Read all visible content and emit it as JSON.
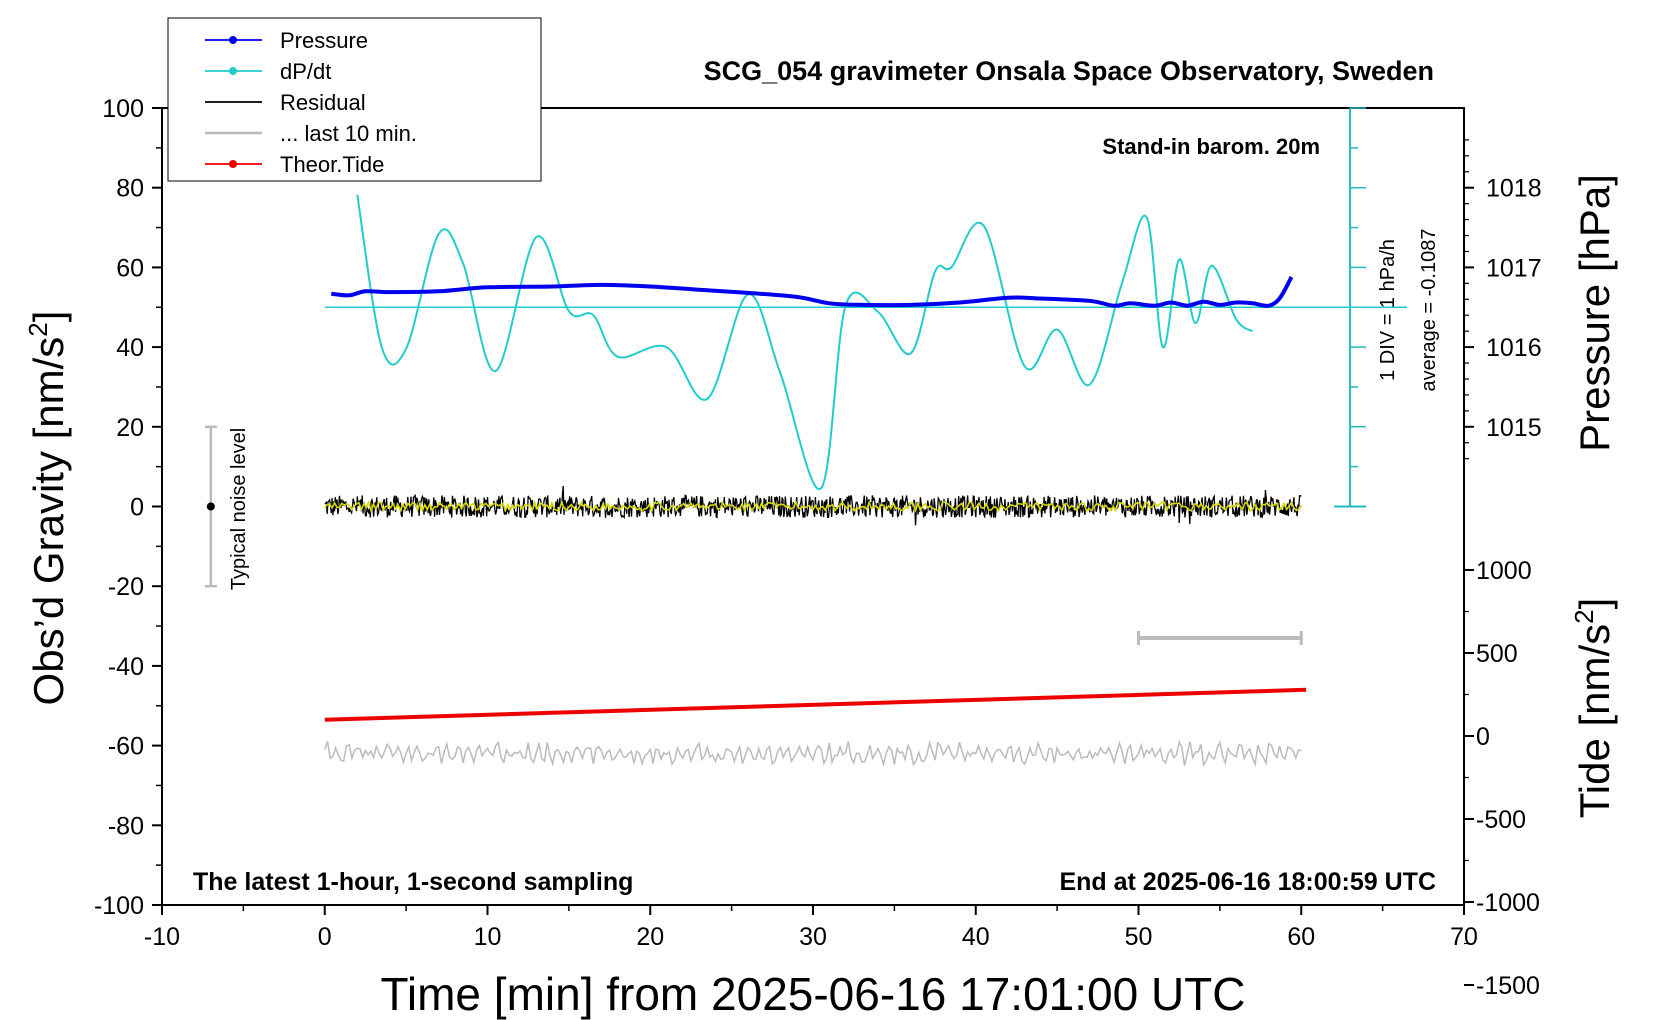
{
  "chart_data": {
    "type": "line",
    "title": "SCG_054 gravimeter Onsala Space Observatory, Sweden",
    "xlabel": "Time [min] from 2025-06-16 17:01:00 UTC",
    "ylabel_left": "Obs’d Gravity [nm/s",
    "ylabel_left_sup": "2",
    "ylabel_left_end": "]",
    "ylabel_right_top": "Pressure [hPa]",
    "ylabel_right_bottom": "Tide [nm/s",
    "ylabel_right_bottom_sup": "2",
    "ylabel_right_bottom_end": "]",
    "xlim": [
      -10,
      70
    ],
    "ylim": [
      -100,
      100
    ],
    "x_ticks": [
      "-10",
      "0",
      "10",
      "20",
      "30",
      "40",
      "50",
      "60",
      "70"
    ],
    "y_ticks": [
      "100",
      "80",
      "60",
      "40",
      "20",
      "0",
      "-20",
      "-40",
      "-60",
      "-80",
      "-100"
    ],
    "pressure_axis": {
      "ticks": [
        "1018",
        "1017",
        "1016",
        "1015"
      ],
      "values": [
        1018,
        1017,
        1016,
        1015
      ],
      "range": [
        1014.0,
        1019.0
      ]
    },
    "tide_axis": {
      "ticks": [
        "1000",
        "500",
        "0",
        "-500",
        "-1000",
        "-1500"
      ],
      "values": [
        1000,
        500,
        0,
        -500,
        -1000,
        -1500
      ],
      "range": [
        -1500,
        1500
      ]
    },
    "annotations": {
      "barometer": "Stand-in barom. 20m",
      "sampling": "The latest 1-hour, 1-second sampling",
      "end_time": "End at 2025-06-16 18:00:59 UTC",
      "div_scale": "1 DIV = 1 hPa/h",
      "average": "average = -0.1087",
      "noise": "Typical noise level"
    },
    "legend": [
      {
        "name": "Pressure",
        "color": "#0000ee",
        "marker": true
      },
      {
        "name": "dP/dt",
        "color": "#22cccc",
        "marker": true
      },
      {
        "name": "Residual",
        "color": "#000000",
        "marker": false
      },
      {
        "name": "... last 10 min.",
        "color": "#bbbbbb",
        "marker": false
      },
      {
        "name": "Theor.Tide",
        "color": "#ee0000",
        "marker": true
      }
    ],
    "series": [
      {
        "name": "Pressure",
        "unit": "hPa",
        "color": "#0000ee",
        "x": [
          0.4,
          1.5,
          2.5,
          4,
          7,
          10,
          14,
          17,
          20,
          23,
          26,
          29,
          31,
          33,
          36,
          39,
          42,
          44,
          47,
          48.5,
          49.5,
          51,
          52,
          53,
          54,
          55,
          56,
          57,
          58,
          58.7,
          59.4
        ],
        "y": [
          1016.67,
          1016.65,
          1016.7,
          1016.69,
          1016.7,
          1016.75,
          1016.76,
          1016.78,
          1016.76,
          1016.72,
          1016.68,
          1016.63,
          1016.55,
          1016.53,
          1016.53,
          1016.56,
          1016.62,
          1016.61,
          1016.58,
          1016.52,
          1016.55,
          1016.52,
          1016.56,
          1016.52,
          1016.57,
          1016.53,
          1016.56,
          1016.55,
          1016.52,
          1016.62,
          1016.88
        ]
      },
      {
        "name": "dP/dt",
        "unit": "DIV (1 DIV = 1 hPa/h), baseline at y = 50",
        "color": "#22cccc",
        "x": [
          2,
          3.5,
          5,
          7,
          8.5,
          10.5,
          13,
          15,
          16.5,
          18,
          21,
          23.5,
          26,
          28,
          30.5,
          32,
          34,
          36,
          37.5,
          38.5,
          40.5,
          43,
          45,
          47,
          49,
          50.5,
          51.5,
          52.5,
          53.5,
          54.5,
          56,
          57
        ],
        "y": [
          1.41,
          -0.5,
          -0.52,
          0.92,
          0.55,
          -0.8,
          0.88,
          -0.05,
          -0.1,
          -0.62,
          -0.5,
          -1.15,
          0.16,
          -0.83,
          -2.27,
          0.02,
          -0.06,
          -0.58,
          0.45,
          0.5,
          1.02,
          -0.74,
          -0.28,
          -0.97,
          0.31,
          1.13,
          -0.5,
          0.6,
          -0.2,
          0.52,
          -0.15,
          -0.3
        ]
      },
      {
        "name": "Residual",
        "unit": "nm/s2",
        "color": "#000000",
        "x_range": [
          0,
          60
        ],
        "level": 0,
        "typical_amplitude": 2
      },
      {
        "name": "... last 10 min.",
        "color": "#bbbbbb",
        "x_range": [
          50,
          60
        ],
        "y": -33
      },
      {
        "name": "Theor.Tide",
        "unit": "nm/s2",
        "color": "#ee0000",
        "x": [
          0,
          60.3
        ],
        "y": [
          -53.5,
          -46
        ]
      },
      {
        "name": "Noise reference",
        "unit": "nm/s2",
        "color": "#bbbbbb",
        "x_range": [
          0,
          60
        ],
        "level": -62
      }
    ],
    "noise_bar": {
      "x": -7,
      "center": 0,
      "low": -20,
      "high": 20
    },
    "grid": false,
    "legend_position": "top-left"
  }
}
